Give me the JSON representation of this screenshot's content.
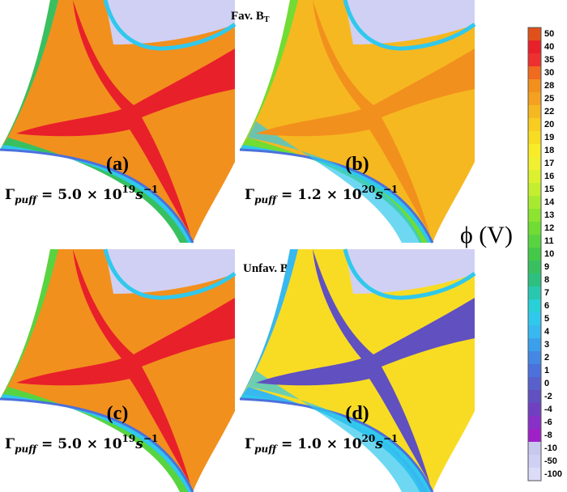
{
  "figure": {
    "panels": [
      {
        "label": "(a)",
        "gamma": {
          "symbol": "Γ",
          "subscript": "puff",
          "text": " = 5.0 × 10",
          "exponent": "19",
          "unit": "s",
          "unit_exponent": "−1"
        },
        "note": "Fav. B",
        "note_sub": "T",
        "scheme": "a"
      },
      {
        "label": "(b)",
        "gamma": {
          "symbol": "Γ",
          "subscript": "puff",
          "text": " = 1.2 × 10",
          "exponent": "20",
          "unit": "s",
          "unit_exponent": "−1"
        },
        "scheme": "b"
      },
      {
        "label": "(c)",
        "gamma": {
          "symbol": "Γ",
          "subscript": "puff",
          "text": " = 5.0 × 10",
          "exponent": "19",
          "unit": "s",
          "unit_exponent": "−1"
        },
        "note": "Unfav. B",
        "note_sub": "T",
        "scheme": "c"
      },
      {
        "label": "(d)",
        "gamma": {
          "symbol": "Γ",
          "subscript": "puff",
          "text": " = 1.0 × 10",
          "exponent": "20",
          "unit": "s",
          "unit_exponent": "−1"
        },
        "scheme": "d"
      }
    ],
    "colorbar": {
      "title": "ϕ (V)",
      "levels": [
        "50",
        "40",
        "35",
        "30",
        "28",
        "25",
        "22",
        "20",
        "19",
        "18",
        "17",
        "16",
        "15",
        "14",
        "13",
        "12",
        "11",
        "10",
        "9",
        "8",
        "7",
        "6",
        "5",
        "4",
        "3",
        "2",
        "1",
        "0",
        "-2",
        "-4",
        "-6",
        "-8",
        "-10",
        "-50",
        "-100"
      ],
      "colors": [
        "#e0501a",
        "#e8202a",
        "#ee3030",
        "#f06a20",
        "#f2901e",
        "#f4a020",
        "#f6b820",
        "#f8cc20",
        "#f8dc24",
        "#f8ec28",
        "#f0f030",
        "#dcf030",
        "#c4ee30",
        "#a8ea30",
        "#8ce430",
        "#70dc34",
        "#58d440",
        "#44c848",
        "#38c060",
        "#2ec080",
        "#28c8b0",
        "#28d0d8",
        "#30c8ec",
        "#38b8f0",
        "#3aa0ec",
        "#4488e4",
        "#4c70dc",
        "#5860cc",
        "#6050c0",
        "#7040c0",
        "#8830c8",
        "#a020c8",
        "#c8c8ee",
        "#d0d0f4",
        "#dcdcf8"
      ]
    }
  }
}
